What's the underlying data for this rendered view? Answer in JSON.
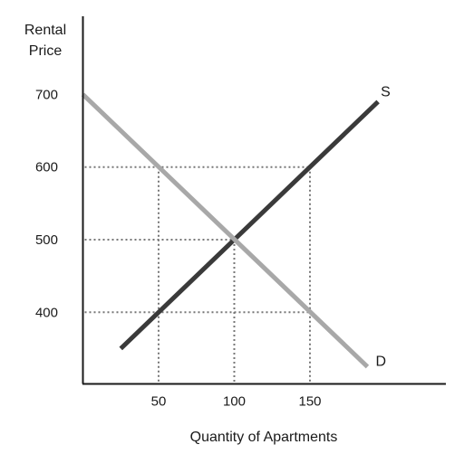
{
  "chart_data": {
    "type": "line",
    "title": "",
    "ylabel_lines": [
      "Rental",
      "Price"
    ],
    "xlabel": "Quantity of Apartments",
    "xlim": [
      0,
      240
    ],
    "ylim": [
      290,
      805
    ],
    "x_ticks": [
      50,
      100,
      150
    ],
    "y_ticks": [
      400,
      500,
      600,
      700
    ],
    "grid": "dotted guide lines at selected points",
    "guide_points": [
      {
        "x": 50,
        "y": 600
      },
      {
        "x": 150,
        "y": 600
      },
      {
        "x": 100,
        "y": 500
      },
      {
        "x": 50,
        "y": 400
      },
      {
        "x": 150,
        "y": 400
      }
    ],
    "series": [
      {
        "name": "S",
        "color": "#3a3a3a",
        "points": [
          [
            25,
            350
          ],
          [
            195,
            690
          ]
        ]
      },
      {
        "name": "D",
        "color": "#a8a8a8",
        "points": [
          [
            0,
            700
          ],
          [
            188,
            325
          ]
        ]
      }
    ]
  }
}
